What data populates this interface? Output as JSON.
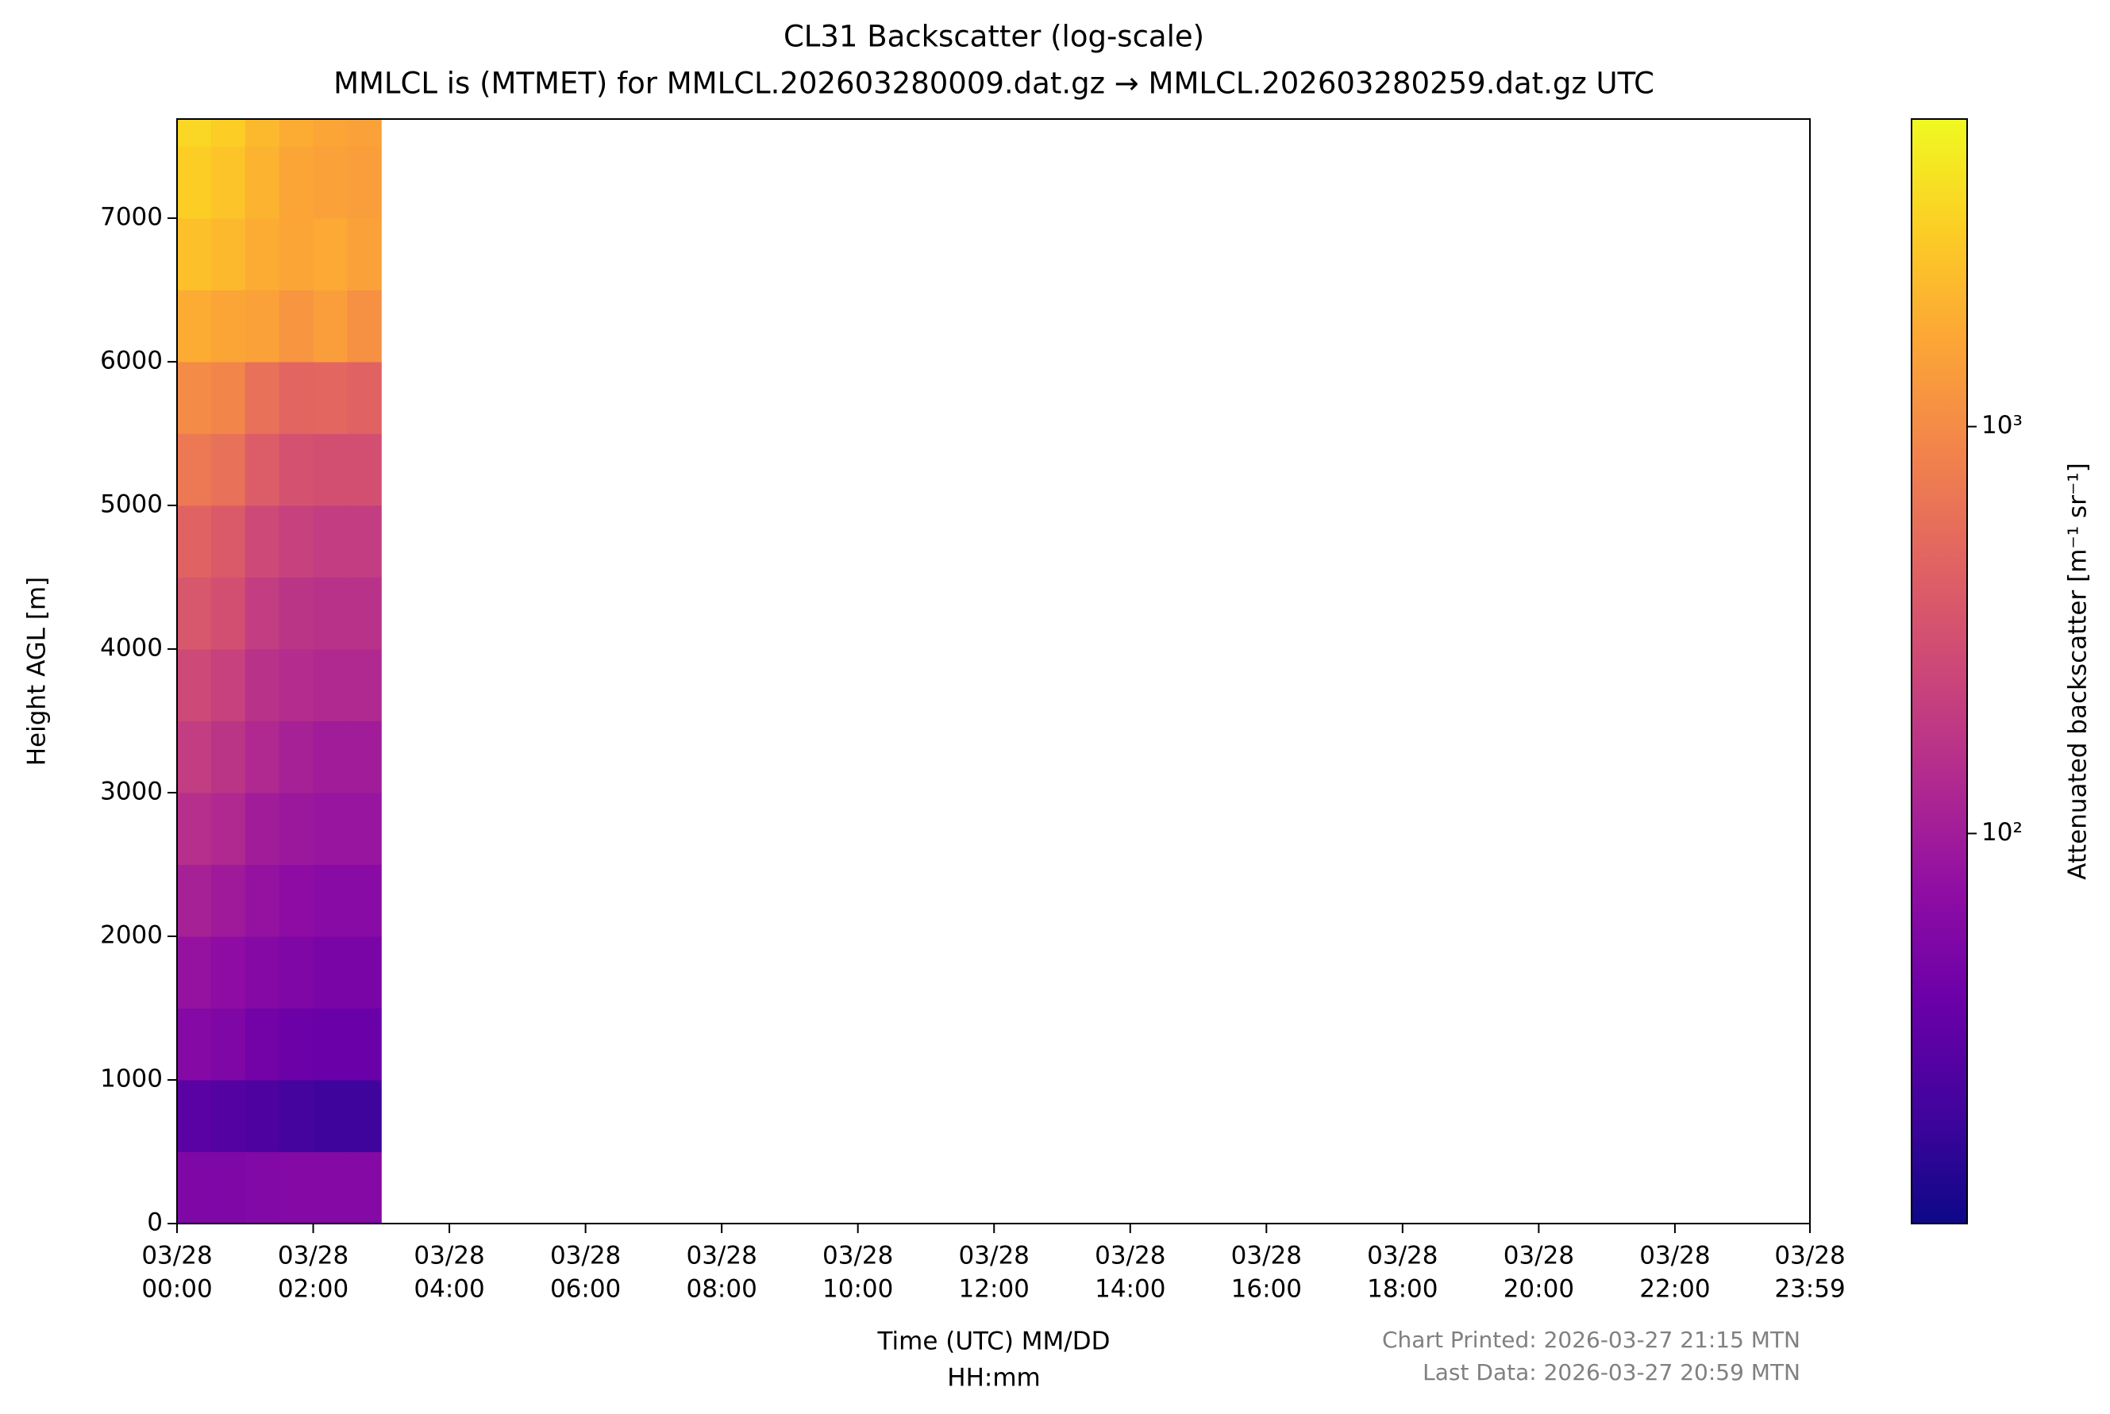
{
  "chart_data": {
    "type": "heatmap",
    "title": "CL31 Backscatter (log-scale)",
    "subtitle": "MMLCL is (MTMET) for MMLCL.202603280009.dat.gz → MMLCL.202603280259.dat.gz UTC",
    "x_label": [
      "Time (UTC) MM/DD",
      "HH:mm"
    ],
    "y_label": "Height AGL [m]",
    "colorbar_label": "Attenuated backscatter [m⁻¹ sr⁻¹]",
    "notes": [
      "Chart Printed: 2026-03-27 21:15 MTN",
      "Last Data: 2026-03-27 20:59 MTN"
    ],
    "colormap": "plasma",
    "color_scale": "log",
    "x": [
      0,
      0.5,
      1,
      1.5,
      2,
      2.5,
      3
    ],
    "y": [
      0,
      500,
      1000,
      1500,
      2000,
      2500,
      3000,
      3500,
      4000,
      4500,
      5000,
      5500,
      6000,
      6500,
      7000,
      7500,
      7690
    ],
    "values": [
      [
        55,
        55,
        58,
        60,
        60,
        60
      ],
      [
        30,
        28,
        25,
        22,
        20,
        20
      ],
      [
        60,
        55,
        45,
        40,
        38,
        38
      ],
      [
        80,
        70,
        60,
        55,
        50,
        50
      ],
      [
        110,
        95,
        80,
        70,
        65,
        65
      ],
      [
        150,
        130,
        100,
        90,
        85,
        85
      ],
      [
        200,
        170,
        130,
        110,
        100,
        100
      ],
      [
        260,
        220,
        160,
        140,
        130,
        130
      ],
      [
        350,
        300,
        200,
        170,
        160,
        160
      ],
      [
        450,
        380,
        260,
        220,
        200,
        200
      ],
      [
        700,
        600,
        400,
        320,
        300,
        300
      ],
      [
        1000,
        900,
        600,
        480,
        500,
        450
      ],
      [
        1800,
        1600,
        1500,
        1200,
        1400,
        1100
      ],
      [
        2500,
        2200,
        1800,
        1600,
        1700,
        1500
      ],
      [
        3000,
        2600,
        2000,
        1600,
        1500,
        1400
      ],
      [
        3500,
        3000,
        2200,
        1800,
        1600,
        1500
      ]
    ],
    "xlim": [
      0,
      23.983
    ],
    "xticks": [
      {
        "value": 0,
        "label": [
          "03/28",
          "00:00"
        ]
      },
      {
        "value": 2,
        "label": [
          "03/28",
          "02:00"
        ]
      },
      {
        "value": 4,
        "label": [
          "03/28",
          "04:00"
        ]
      },
      {
        "value": 6,
        "label": [
          "03/28",
          "06:00"
        ]
      },
      {
        "value": 8,
        "label": [
          "03/28",
          "08:00"
        ]
      },
      {
        "value": 10,
        "label": [
          "03/28",
          "10:00"
        ]
      },
      {
        "value": 12,
        "label": [
          "03/28",
          "12:00"
        ]
      },
      {
        "value": 14,
        "label": [
          "03/28",
          "14:00"
        ]
      },
      {
        "value": 16,
        "label": [
          "03/28",
          "16:00"
        ]
      },
      {
        "value": 18,
        "label": [
          "03/28",
          "18:00"
        ]
      },
      {
        "value": 20,
        "label": [
          "03/28",
          "20:00"
        ]
      },
      {
        "value": 22,
        "label": [
          "03/28",
          "22:00"
        ]
      },
      {
        "value": 23.983,
        "label": [
          "03/28",
          "23:59"
        ]
      }
    ],
    "ylim": [
      0,
      7690
    ],
    "yticks": [
      0,
      1000,
      2000,
      3000,
      4000,
      5000,
      6000,
      7000
    ],
    "clim": [
      11,
      5700
    ],
    "cticks": [
      {
        "value": 100,
        "label": "10²"
      },
      {
        "value": 1000,
        "label": "10³"
      }
    ]
  }
}
